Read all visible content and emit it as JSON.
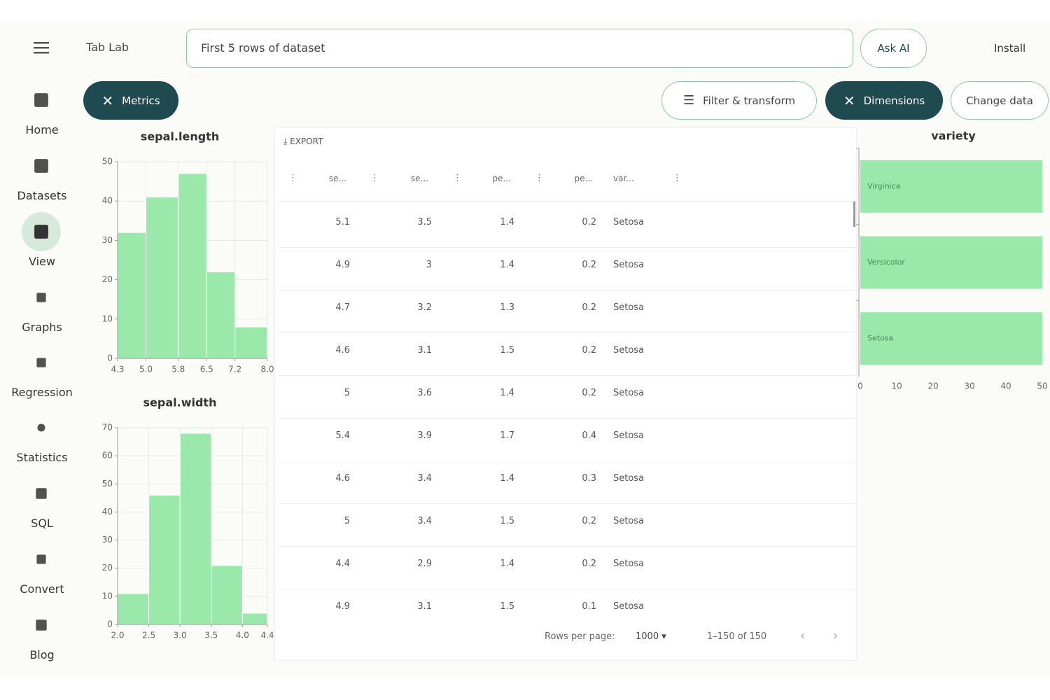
{
  "header": {
    "title": "Tab Lab",
    "search": "First 5 rows of dataset",
    "ask": "Ask AI",
    "install": "Install"
  },
  "toolbar": {
    "metrics": "Metrics",
    "filter": "Filter & transform",
    "dimensions": "Dimensions",
    "change": "Change data"
  },
  "nav": [
    "Home",
    "Datasets",
    "View",
    "Graphs",
    "Regression",
    "Statistics",
    "SQL",
    "Convert",
    "Blog"
  ],
  "chart_data": [
    {
      "type": "histogram",
      "title": "sepal.length",
      "bins": [
        4.3,
        5.0,
        5.8,
        6.5,
        7.2,
        8.0
      ],
      "values": [
        32,
        41,
        47,
        22,
        8
      ],
      "color": "#9ae9ab",
      "xlim": [
        4.3,
        8.0
      ],
      "xticks": [
        4.3,
        {
          "value": 5,
          "label": "5.0"
        },
        5.8,
        6.5,
        7.2,
        {
          "value": 8,
          "label": "8.0"
        }
      ],
      "ylim": [
        0,
        50
      ],
      "yticks": [
        0,
        10,
        20,
        30,
        40,
        50
      ],
      "grid": true
    },
    {
      "type": "histogram",
      "title": "sepal.width",
      "bins": [
        2.0,
        2.5,
        3.0,
        3.5,
        4.0,
        4.4
      ],
      "values": [
        11,
        46,
        68,
        21,
        4
      ],
      "color": "#9ae9ab",
      "xlim": [
        2.0,
        4.4
      ],
      "xticks": [
        {
          "value": 2,
          "label": "2.0"
        },
        2.5,
        {
          "value": 3,
          "label": "3.0"
        },
        3.5,
        {
          "value": 4,
          "label": "4.0"
        },
        4.4
      ],
      "ylim": [
        0,
        70
      ],
      "yticks": [
        0,
        10,
        20,
        30,
        40,
        50,
        60,
        70
      ],
      "grid": true
    },
    {
      "type": "barh",
      "title": "variety",
      "categories": [
        "Virginica",
        "Versicolor",
        "Setosa"
      ],
      "values": [
        50,
        50,
        50
      ],
      "color": "#9ae9ab",
      "xlim": [
        0,
        50
      ],
      "xticks": [
        0,
        10,
        20,
        30,
        40,
        50
      ]
    }
  ],
  "table": {
    "export": "EXPORT",
    "columns": [
      "se...",
      "se...",
      "pe...",
      "pe...",
      "var..."
    ],
    "rows": [
      [
        5.1,
        3.5,
        1.4,
        0.2,
        "Setosa"
      ],
      [
        4.9,
        3,
        1.4,
        0.2,
        "Setosa"
      ],
      [
        4.7,
        3.2,
        1.3,
        0.2,
        "Setosa"
      ],
      [
        4.6,
        3.1,
        1.5,
        0.2,
        "Setosa"
      ],
      [
        5,
        3.6,
        1.4,
        0.2,
        "Setosa"
      ],
      [
        5.4,
        3.9,
        1.7,
        0.4,
        "Setosa"
      ],
      [
        4.6,
        3.4,
        1.4,
        0.3,
        "Setosa"
      ],
      [
        5,
        3.4,
        1.5,
        0.2,
        "Setosa"
      ],
      [
        4.4,
        2.9,
        1.4,
        0.2,
        "Setosa"
      ],
      [
        4.9,
        3.1,
        1.5,
        0.1,
        "Setosa"
      ]
    ],
    "rows_per_page_label": "Rows per page:",
    "rows_per_page": 1000,
    "range": "1–150 of 150"
  }
}
